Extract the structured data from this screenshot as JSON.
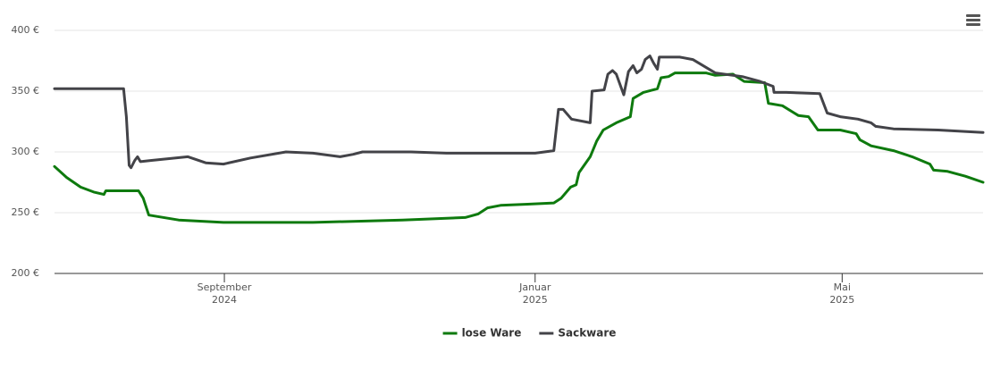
{
  "chart_data": {
    "type": "line",
    "xlim": [
      2024.485,
      2025.48
    ],
    "xticks": [
      {
        "value": 2024.667,
        "label": [
          "September",
          "2024"
        ]
      },
      {
        "value": 2025.0,
        "label": [
          "Januar",
          "2025"
        ]
      },
      {
        "value": 2025.329,
        "label": [
          "Mai",
          "2025"
        ]
      }
    ],
    "ylim": [
      200,
      400
    ],
    "yticks": [
      {
        "value": 200,
        "label": "200 €"
      },
      {
        "value": 250,
        "label": "250 €"
      },
      {
        "value": 300,
        "label": "300 €"
      },
      {
        "value": 350,
        "label": "350 €"
      },
      {
        "value": 400,
        "label": "400 €"
      }
    ],
    "grid": true,
    "legend": "bottom",
    "series": [
      {
        "name": "lose Ware",
        "color": "#0e7a0e",
        "x": [
          2024.485,
          2024.498,
          2024.513,
          2024.527,
          2024.538,
          2024.54,
          2024.575,
          2024.58,
          2024.586,
          2024.618,
          2024.666,
          2024.762,
          2024.858,
          2024.925,
          2024.939,
          2024.949,
          2024.963,
          2024.992,
          2025.02,
          2025.028,
          2025.038,
          2025.044,
          2025.047,
          2025.059,
          2025.066,
          2025.073,
          2025.087,
          2025.102,
          2025.105,
          2025.116,
          2025.131,
          2025.135,
          2025.143,
          2025.15,
          2025.183,
          2025.193,
          2025.212,
          2025.224,
          2025.246,
          2025.25,
          2025.265,
          2025.282,
          2025.293,
          2025.303,
          2025.327,
          2025.344,
          2025.348,
          2025.36,
          2025.384,
          2025.404,
          2025.423,
          2025.427,
          2025.442,
          2025.461,
          2025.48
        ],
        "values": [
          288,
          279,
          271,
          267,
          265,
          268,
          268,
          262,
          248,
          244,
          242,
          242,
          244,
          246,
          249,
          254,
          256,
          257,
          258,
          262,
          271,
          273,
          283,
          296,
          309,
          318,
          324,
          329,
          344,
          349,
          352,
          361,
          362,
          365,
          365,
          363,
          364,
          358,
          357,
          340,
          338,
          330,
          329,
          318,
          318,
          315,
          310,
          305,
          301,
          296,
          290,
          285,
          284,
          280,
          275
        ]
      },
      {
        "name": "Sackware",
        "color": "#434348",
        "x": [
          2024.485,
          2024.559,
          2024.562,
          2024.565,
          2024.567,
          2024.571,
          2024.574,
          2024.577,
          2024.589,
          2024.628,
          2024.647,
          2024.666,
          2024.695,
          2024.733,
          2024.762,
          2024.791,
          2024.805,
          2024.815,
          2024.867,
          2024.905,
          2025.0,
          2025.02,
          2025.025,
          2025.03,
          2025.039,
          2025.059,
          2025.061,
          2025.074,
          2025.078,
          2025.083,
          2025.087,
          2025.095,
          2025.1,
          2025.105,
          2025.109,
          2025.114,
          2025.118,
          2025.123,
          2025.127,
          2025.131,
          2025.133,
          2025.155,
          2025.169,
          2025.193,
          2025.222,
          2025.241,
          2025.255,
          2025.256,
          2025.269,
          2025.305,
          2025.313,
          2025.327,
          2025.346,
          2025.36,
          2025.365,
          2025.384,
          2025.432,
          2025.48
        ],
        "values": [
          352,
          352,
          329,
          289,
          287,
          293,
          296,
          292,
          293,
          296,
          291,
          290,
          295,
          300,
          299,
          296,
          298,
          300,
          300,
          299,
          299,
          301,
          335,
          335,
          327,
          324,
          350,
          351,
          364,
          367,
          364,
          347,
          366,
          371,
          365,
          368,
          376,
          379,
          373,
          368,
          378,
          378,
          376,
          365,
          362,
          358,
          354,
          349,
          349,
          348,
          332,
          329,
          327,
          324,
          321,
          319,
          318,
          316
        ]
      }
    ]
  }
}
